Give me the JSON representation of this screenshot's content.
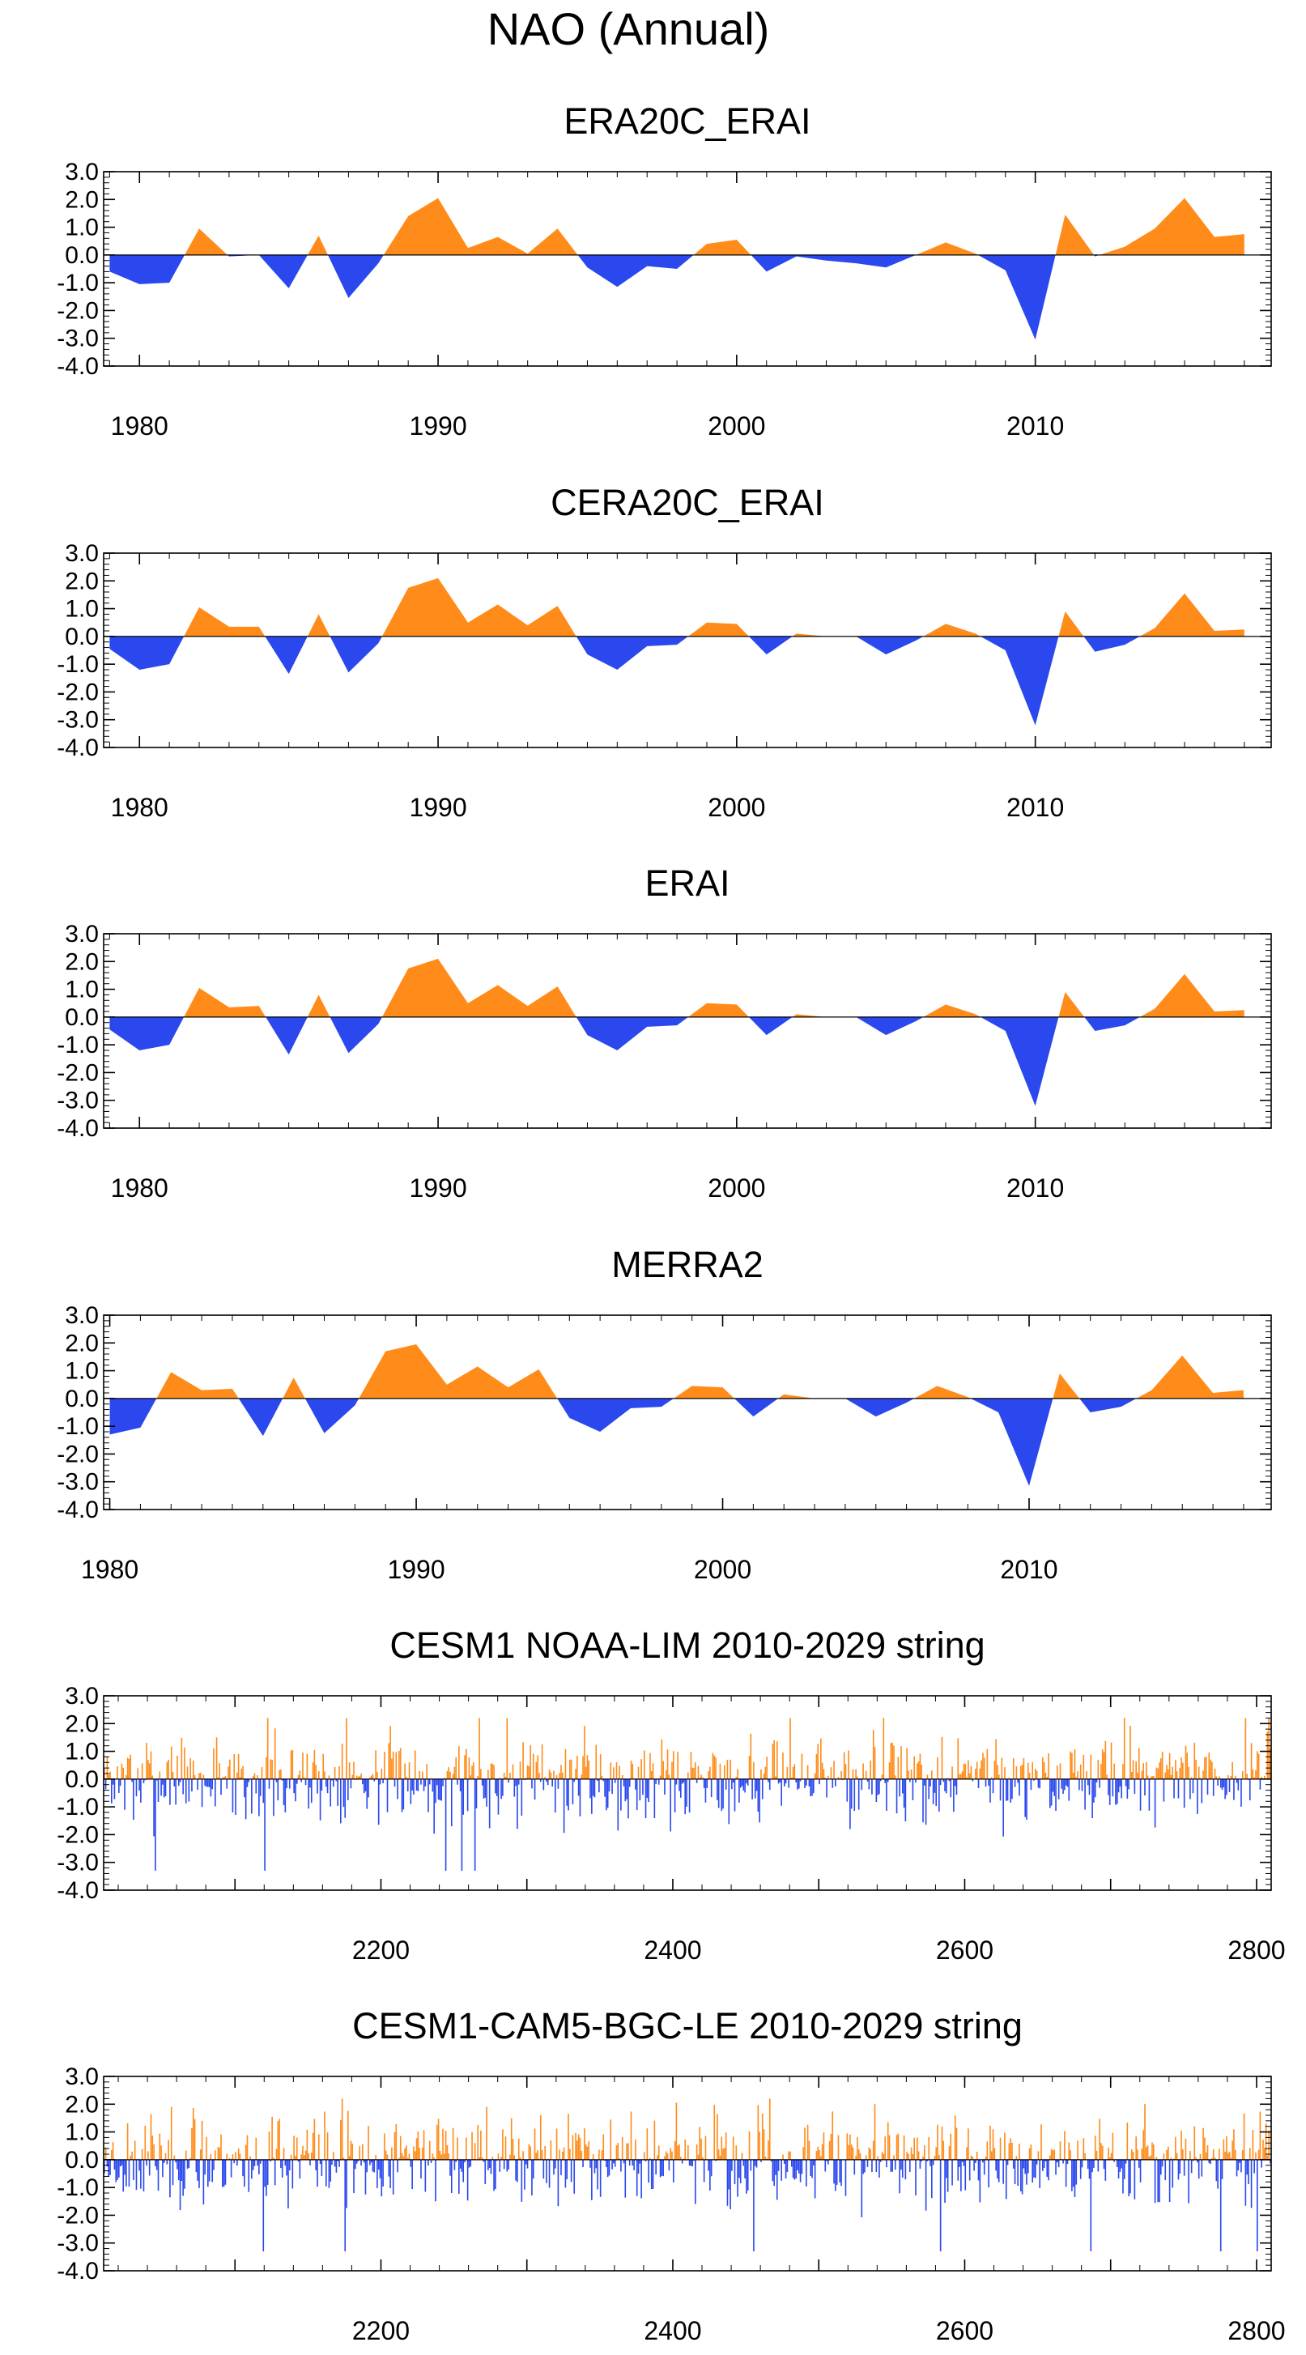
{
  "title": "NAO (Annual)",
  "colors": {
    "positive": "#ff8c1a",
    "negative": "#2a48ee",
    "frame": "#000000"
  },
  "y_ticks": [
    "3.0",
    "2.0",
    "1.0",
    "0.0",
    "-1.0",
    "-2.0",
    "-3.0",
    "-4.0"
  ],
  "chart_data": [
    {
      "type": "area",
      "title": "ERA20C_ERAI",
      "xlim": [
        1978.8,
        2017.9
      ],
      "ylim": [
        -4.0,
        3.0
      ],
      "x_ticks": [
        1980,
        1990,
        2000,
        2010
      ],
      "x_tick_labels": [
        "1980",
        "1990",
        "2000",
        "2010"
      ],
      "x": [
        1979,
        1980,
        1981,
        1982,
        1983,
        1984,
        1985,
        1986,
        1987,
        1988,
        1989,
        1990,
        1991,
        1992,
        1993,
        1994,
        1995,
        1996,
        1997,
        1998,
        1999,
        2000,
        2001,
        2002,
        2003,
        2004,
        2005,
        2006,
        2007,
        2008,
        2009,
        2010,
        2011,
        2012,
        2013,
        2014,
        2015,
        2016,
        2017
      ],
      "values": [
        -0.6,
        -1.05,
        -1.0,
        0.95,
        -0.05,
        0.0,
        -1.2,
        0.7,
        -1.55,
        -0.3,
        1.4,
        2.05,
        0.25,
        0.65,
        0.05,
        0.95,
        -0.45,
        -1.15,
        -0.4,
        -0.5,
        0.4,
        0.55,
        -0.6,
        -0.05,
        -0.2,
        -0.3,
        -0.45,
        0.0,
        0.45,
        0.05,
        -0.55,
        -3.05,
        1.45,
        -0.05,
        0.3,
        0.95,
        2.05,
        0.65,
        0.75
      ]
    },
    {
      "type": "area",
      "title": "CERA20C_ERAI",
      "xlim": [
        1978.8,
        2017.9
      ],
      "ylim": [
        -4.0,
        3.0
      ],
      "x_ticks": [
        1980,
        1990,
        2000,
        2010
      ],
      "x_tick_labels": [
        "1980",
        "1990",
        "2000",
        "2010"
      ],
      "x": [
        1979,
        1980,
        1981,
        1982,
        1983,
        1984,
        1985,
        1986,
        1987,
        1988,
        1989,
        1990,
        1991,
        1992,
        1993,
        1994,
        1995,
        1996,
        1997,
        1998,
        1999,
        2000,
        2001,
        2002,
        2003,
        2004,
        2005,
        2006,
        2007,
        2008,
        2009,
        2010,
        2011,
        2012,
        2013,
        2014,
        2015,
        2016,
        2017
      ],
      "values": [
        -0.45,
        -1.2,
        -1.0,
        1.05,
        0.35,
        0.35,
        -1.35,
        0.8,
        -1.3,
        -0.25,
        1.75,
        2.1,
        0.5,
        1.15,
        0.4,
        1.1,
        -0.65,
        -1.2,
        -0.35,
        -0.3,
        0.5,
        0.45,
        -0.65,
        0.1,
        0.0,
        0.0,
        -0.65,
        -0.15,
        0.45,
        0.1,
        -0.5,
        -3.2,
        0.9,
        -0.55,
        -0.3,
        0.3,
        1.55,
        0.2,
        0.25
      ]
    },
    {
      "type": "area",
      "title": "ERAI",
      "xlim": [
        1978.8,
        2017.9
      ],
      "ylim": [
        -4.0,
        3.0
      ],
      "x_ticks": [
        1980,
        1990,
        2000,
        2010
      ],
      "x_tick_labels": [
        "1980",
        "1990",
        "2000",
        "2010"
      ],
      "x": [
        1979,
        1980,
        1981,
        1982,
        1983,
        1984,
        1985,
        1986,
        1987,
        1988,
        1989,
        1990,
        1991,
        1992,
        1993,
        1994,
        1995,
        1996,
        1997,
        1998,
        1999,
        2000,
        2001,
        2002,
        2003,
        2004,
        2005,
        2006,
        2007,
        2008,
        2009,
        2010,
        2011,
        2012,
        2013,
        2014,
        2015,
        2016,
        2017
      ],
      "values": [
        -0.45,
        -1.2,
        -1.0,
        1.05,
        0.35,
        0.4,
        -1.35,
        0.8,
        -1.3,
        -0.25,
        1.75,
        2.1,
        0.5,
        1.15,
        0.4,
        1.1,
        -0.65,
        -1.2,
        -0.35,
        -0.3,
        0.5,
        0.45,
        -0.65,
        0.1,
        0.0,
        0.0,
        -0.65,
        -0.15,
        0.45,
        0.1,
        -0.5,
        -3.2,
        0.9,
        -0.5,
        -0.3,
        0.3,
        1.55,
        0.2,
        0.25
      ]
    },
    {
      "type": "area",
      "title": "MERRA2",
      "xlim": [
        1979.8,
        2017.9
      ],
      "ylim": [
        -4.0,
        3.0
      ],
      "x_ticks": [
        1980,
        1990,
        2000,
        2010
      ],
      "x_tick_labels": [
        "1980",
        "1990",
        "2000",
        "2010"
      ],
      "x": [
        1980,
        1981,
        1982,
        1983,
        1984,
        1985,
        1986,
        1987,
        1988,
        1989,
        1990,
        1991,
        1992,
        1993,
        1994,
        1995,
        1996,
        1997,
        1998,
        1999,
        2000,
        2001,
        2002,
        2003,
        2004,
        2005,
        2006,
        2007,
        2008,
        2009,
        2010,
        2011,
        2012,
        2013,
        2014,
        2015,
        2016,
        2017
      ],
      "values": [
        -1.3,
        -1.05,
        0.95,
        0.3,
        0.35,
        -1.35,
        0.75,
        -1.25,
        -0.25,
        1.7,
        1.95,
        0.5,
        1.15,
        0.4,
        1.05,
        -0.7,
        -1.2,
        -0.35,
        -0.3,
        0.45,
        0.4,
        -0.65,
        0.15,
        0.0,
        0.0,
        -0.65,
        -0.15,
        0.45,
        0.05,
        -0.5,
        -3.15,
        0.9,
        -0.5,
        -0.3,
        0.3,
        1.55,
        0.2,
        0.3
      ]
    },
    {
      "type": "bar",
      "title": "CESM1 NOAA-LIM 2010-2029 string",
      "xlim": [
        2010,
        2810
      ],
      "ylim": [
        -4.0,
        3.0
      ],
      "x_ticks": [
        2200,
        2400,
        2600,
        2800
      ],
      "x_tick_labels": [
        "2200",
        "2400",
        "2600",
        "2800"
      ],
      "n_years": 800,
      "note": "dense annual NAO index series; typical amplitude between -3.6 and 2.3",
      "seed": 7
    },
    {
      "type": "bar",
      "title": "CESM1-CAM5-BGC-LE 2010-2029 string",
      "xlim": [
        2010,
        2810
      ],
      "ylim": [
        -4.0,
        3.0
      ],
      "x_ticks": [
        2200,
        2400,
        2600,
        2800
      ],
      "x_tick_labels": [
        "2200",
        "2400",
        "2600",
        "2800"
      ],
      "n_years": 800,
      "note": "dense annual NAO index series; typical amplitude between -3.3 and 2.5",
      "seed": 23
    }
  ]
}
